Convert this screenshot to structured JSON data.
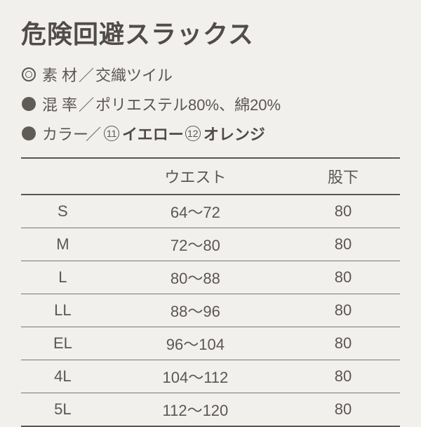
{
  "title": "危険回避スラックス",
  "specs": {
    "material": {
      "label": "素材",
      "value": "交織ツイル"
    },
    "mix": {
      "label": "混率",
      "value": "ポリエステル80%、綿20%"
    },
    "color": {
      "label": "カラー",
      "opts": [
        {
          "num": "11",
          "name": "イエロー"
        },
        {
          "num": "12",
          "name": "オレンジ"
        }
      ]
    }
  },
  "table": {
    "headers": {
      "size": "",
      "waist": "ウエスト",
      "inseam": "股下"
    },
    "rows": [
      {
        "size": "S",
        "waist": "64～72",
        "inseam": "80"
      },
      {
        "size": "M",
        "waist": "72～80",
        "inseam": "80"
      },
      {
        "size": "L",
        "waist": "80～88",
        "inseam": "80"
      },
      {
        "size": "LL",
        "waist": "88～96",
        "inseam": "80"
      },
      {
        "size": "EL",
        "waist": "96～104",
        "inseam": "80"
      },
      {
        "size": "4L",
        "waist": "104～112",
        "inseam": "80"
      },
      {
        "size": "5L",
        "waist": "112～120",
        "inseam": "80"
      }
    ]
  }
}
